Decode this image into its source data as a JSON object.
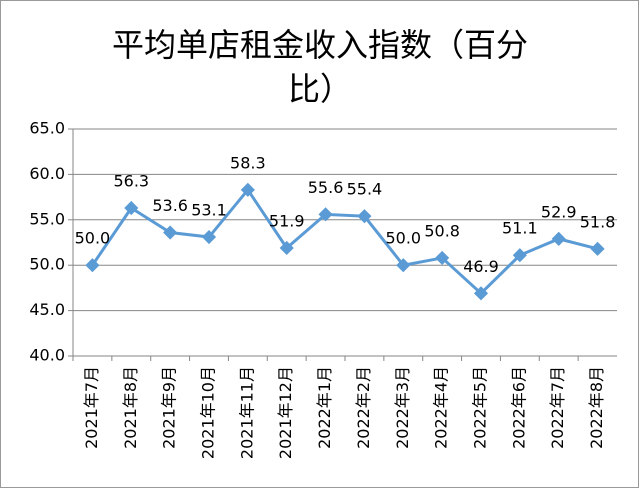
{
  "chart_data": {
    "type": "line",
    "title": "平均单店租金收入指数（百分比）",
    "categories": [
      "2021年7月",
      "2021年8月",
      "2021年9月",
      "2021年10月",
      "2021年11月",
      "2021年12月",
      "2022年1月",
      "2022年2月",
      "2022年3月",
      "2022年4月",
      "2022年5月",
      "2022年6月",
      "2022年7月",
      "2022年8月"
    ],
    "series": [
      {
        "name": "平均单店租金收入指数",
        "color": "#5b9bd5",
        "values": [
          50.0,
          56.3,
          53.6,
          53.1,
          58.3,
          51.9,
          55.6,
          55.4,
          50.0,
          50.8,
          46.9,
          51.1,
          52.9,
          51.8
        ],
        "value_labels": [
          "50.0",
          "56.3",
          "53.6",
          "53.1",
          "58.3",
          "51.9",
          "55.6",
          "55.4",
          "50.0",
          "50.8",
          "46.9",
          "51.1",
          "52.9",
          "51.8"
        ]
      }
    ],
    "ylim": [
      40,
      65
    ],
    "yticks": [
      {
        "value": 40,
        "label": "40.0"
      },
      {
        "value": 45,
        "label": "45.0"
      },
      {
        "value": 50,
        "label": "50.0"
      },
      {
        "value": 55,
        "label": "55.0"
      },
      {
        "value": 60,
        "label": "60.0"
      },
      {
        "value": 65,
        "label": "65.0"
      }
    ],
    "grid": true
  }
}
